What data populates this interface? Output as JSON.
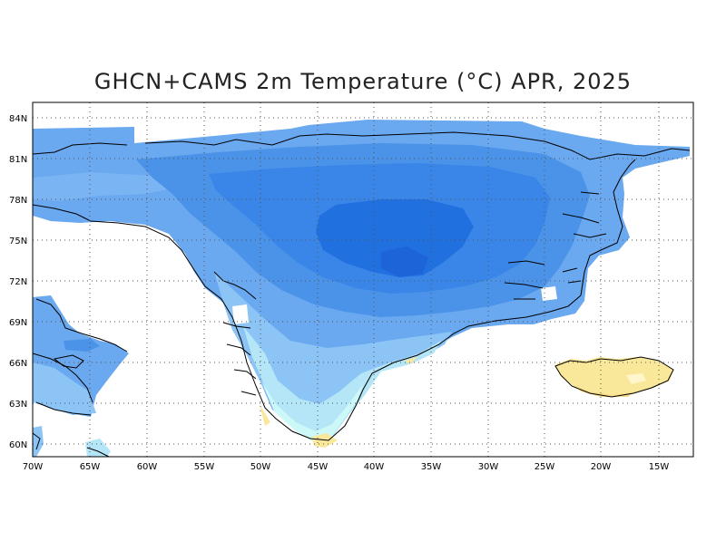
{
  "title": "GHCN+CAMS 2m Temperature (°C) APR, 2025",
  "map": {
    "type": "filled-contour map",
    "variable": "2m air temperature",
    "units": "°C",
    "lon_range": [
      -70,
      -12
    ],
    "lat_range": [
      59,
      84
    ],
    "grid": true,
    "lat_ticks": [
      "84N",
      "81N",
      "78N",
      "75N",
      "72N",
      "69N",
      "66N",
      "63N",
      "60N"
    ],
    "lon_ticks": [
      "70W",
      "65W",
      "60W",
      "55W",
      "50W",
      "45W",
      "40W",
      "35W",
      "30W",
      "25W",
      "20W",
      "15W"
    ],
    "colors": {
      "coldest": "#2070e0",
      "very_cold": "#3a86e8",
      "cold": "#4a93e8",
      "cool": "#6aa8f0",
      "mild_cool": "#8cc4f6",
      "near_zero": "#b4e6f8",
      "slightly_above_zero": "#ccf8f8",
      "warm": "#fae89a",
      "warmer": "#f6dc88"
    }
  }
}
